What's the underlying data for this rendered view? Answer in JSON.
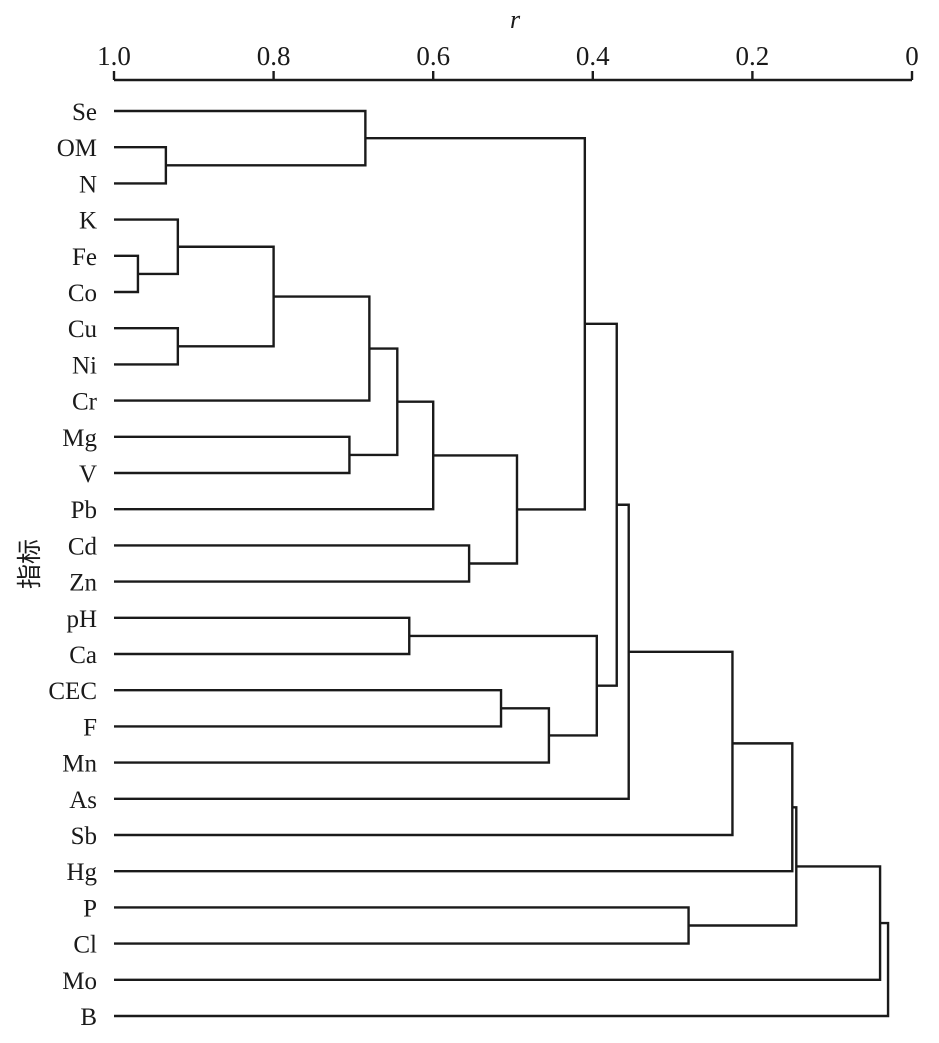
{
  "chart_data": {
    "type": "dendrogram",
    "orientation": "horizontal",
    "x_axis_title": "r",
    "y_axis_title": "指标",
    "xlim": [
      1.0,
      0
    ],
    "x_ticks": [
      1.0,
      0.8,
      0.6,
      0.4,
      0.2,
      0
    ],
    "x_tick_labels": [
      "1.0",
      "0.8",
      "0.6",
      "0.4",
      "0.2",
      "0"
    ],
    "leaves": [
      "Se",
      "OM",
      "N",
      "K",
      "Fe",
      "Co",
      "Cu",
      "Ni",
      "Cr",
      "Mg",
      "V",
      "Pb",
      "Cd",
      "Zn",
      "pH",
      "Ca",
      "CEC",
      "F",
      "Mn",
      "As",
      "Sb",
      "Hg",
      "P",
      "Cl",
      "Mo",
      "B"
    ],
    "merges": [
      {
        "id": "m1",
        "left": "OM",
        "right": "N",
        "r": 0.935
      },
      {
        "id": "m2",
        "left": "Se",
        "right": "m1",
        "r": 0.685
      },
      {
        "id": "m3",
        "left": "Fe",
        "right": "Co",
        "r": 0.97
      },
      {
        "id": "m4",
        "left": "K",
        "right": "m3",
        "r": 0.92
      },
      {
        "id": "m5",
        "left": "Cu",
        "right": "Ni",
        "r": 0.92
      },
      {
        "id": "m6",
        "left": "m4",
        "right": "m5",
        "r": 0.8
      },
      {
        "id": "m7",
        "left": "m6",
        "right": "Cr",
        "r": 0.68
      },
      {
        "id": "m8",
        "left": "Mg",
        "right": "V",
        "r": 0.705
      },
      {
        "id": "m9",
        "left": "m7",
        "right": "m8",
        "r": 0.645
      },
      {
        "id": "m10",
        "left": "m9",
        "right": "Pb",
        "r": 0.6
      },
      {
        "id": "m11",
        "left": "Cd",
        "right": "Zn",
        "r": 0.555
      },
      {
        "id": "m12",
        "left": "m10",
        "right": "m11",
        "r": 0.495
      },
      {
        "id": "m13",
        "left": "m2",
        "right": "m12",
        "r": 0.41
      },
      {
        "id": "m14",
        "left": "pH",
        "right": "Ca",
        "r": 0.63
      },
      {
        "id": "m15",
        "left": "CEC",
        "right": "F",
        "r": 0.515
      },
      {
        "id": "m16",
        "left": "m15",
        "right": "Mn",
        "r": 0.455
      },
      {
        "id": "m17",
        "left": "m14",
        "right": "m16",
        "r": 0.395
      },
      {
        "id": "m18",
        "left": "m13",
        "right": "m17",
        "r": 0.37
      },
      {
        "id": "m19",
        "left": "m18",
        "right": "As",
        "r": 0.355
      },
      {
        "id": "m20",
        "left": "m19",
        "right": "Sb",
        "r": 0.225
      },
      {
        "id": "m21",
        "left": "P",
        "right": "Cl",
        "r": 0.28
      },
      {
        "id": "m22",
        "left": "m20",
        "right": "Hg",
        "r": 0.15
      },
      {
        "id": "m23",
        "left": "m22",
        "right": "m21",
        "r": 0.145
      },
      {
        "id": "m24",
        "left": "m23",
        "right": "Mo",
        "r": 0.04
      },
      {
        "id": "m25",
        "left": "m24",
        "right": "B",
        "r": 0.03
      }
    ],
    "grid": false,
    "legend": "none"
  }
}
